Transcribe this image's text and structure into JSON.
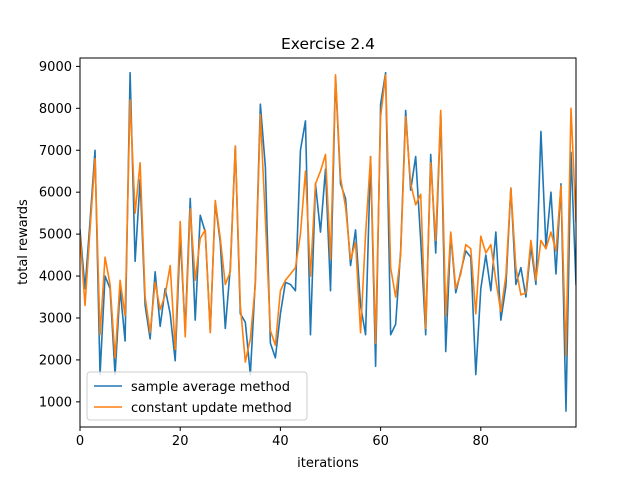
{
  "chart_data": {
    "type": "line",
    "title": "Exercise 2.4",
    "xlabel": "iterations",
    "ylabel": "total rewards",
    "xlim": [
      0,
      99
    ],
    "ylim": [
      400,
      9200
    ],
    "xticks": [
      0,
      20,
      40,
      60,
      80
    ],
    "yticks": [
      1000,
      2000,
      3000,
      4000,
      5000,
      6000,
      7000,
      8000,
      9000
    ],
    "grid": false,
    "legend_position": "lower-left",
    "series": [
      {
        "name": "sample average method",
        "color": "#1f77b4",
        "values": [
          5100,
          3700,
          5300,
          7000,
          1650,
          4000,
          3700,
          1650,
          3700,
          2450,
          8850,
          4350,
          6300,
          3300,
          2500,
          4100,
          2800,
          3700,
          3100,
          1980,
          4950,
          2700,
          5850,
          2950,
          5450,
          5050,
          2700,
          5750,
          4800,
          2750,
          4200,
          7100,
          3100,
          2900,
          1650,
          3900,
          8100,
          6600,
          2400,
          2050,
          3100,
          3850,
          3800,
          3650,
          7000,
          7700,
          2600,
          6200,
          5050,
          6550,
          3650,
          8750,
          6200,
          5850,
          4250,
          5100,
          3300,
          2600,
          6850,
          1850,
          8100,
          8850,
          2600,
          2850,
          4600,
          7950,
          6050,
          6850,
          4850,
          2600,
          6900,
          4550,
          7900,
          2200,
          5000,
          3600,
          4100,
          4600,
          4450,
          1650,
          3700,
          4500,
          3650,
          5050,
          2950,
          3750,
          6100,
          3800,
          4200,
          3500,
          4700,
          3800,
          7450,
          4700,
          6000,
          4050,
          6200,
          780,
          6950,
          3800
        ]
      },
      {
        "name": "constant update method",
        "color": "#ff7f0e",
        "values": [
          5000,
          3300,
          5100,
          6800,
          2600,
          4450,
          3800,
          2050,
          3900,
          3050,
          8200,
          5500,
          6700,
          3500,
          2650,
          3850,
          3200,
          3550,
          4250,
          2250,
          5300,
          2550,
          5600,
          3900,
          4900,
          5100,
          2650,
          5800,
          4900,
          3800,
          4100,
          7100,
          3300,
          1950,
          2500,
          3800,
          7850,
          5350,
          2700,
          2350,
          3650,
          3900,
          4050,
          4200,
          5000,
          6500,
          4000,
          6200,
          6500,
          6900,
          4400,
          8800,
          6350,
          5650,
          4400,
          4800,
          2650,
          5000,
          6850,
          2400,
          7800,
          8800,
          4200,
          3500,
          4500,
          7800,
          6200,
          5700,
          5950,
          2750,
          6700,
          4850,
          7950,
          3050,
          5050,
          3700,
          4050,
          4750,
          4650,
          3100,
          4950,
          4550,
          4750,
          3900,
          3150,
          4000,
          6100,
          4200,
          3550,
          3600,
          4850,
          3900,
          4850,
          4650,
          5050,
          4600,
          6150,
          2100,
          8000,
          5300
        ]
      }
    ]
  }
}
